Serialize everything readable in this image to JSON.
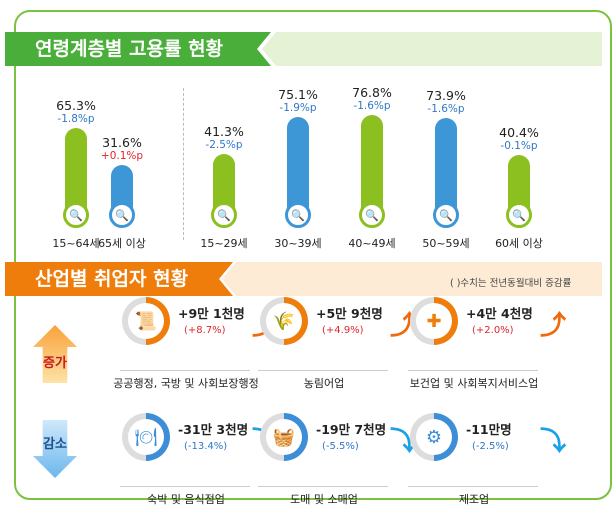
{
  "colors": {
    "green": "#4aae3a",
    "bar_green": "#8cc020",
    "bar_blue": "#3d96d6",
    "orange": "#ef7d0b",
    "neg": "#2f78c4",
    "pos": "#e0262b"
  },
  "section1": {
    "title": "연령계층별 고용률 현황"
  },
  "chart_data": {
    "type": "bar",
    "title": "연령계층별 고용률 현황",
    "categories": [
      "15~64세",
      "65세 이상",
      "15~29세",
      "30~39세",
      "40~49세",
      "50~59세",
      "60세 이상"
    ],
    "values": [
      65.3,
      31.6,
      41.3,
      75.1,
      76.8,
      73.9,
      40.4
    ],
    "value_labels": [
      "65.3%",
      "31.6%",
      "41.3%",
      "75.1%",
      "76.8%",
      "73.9%",
      "40.4%"
    ],
    "changes": [
      "-1.8%p",
      "+0.1%p",
      "-2.5%p",
      "-1.9%p",
      "-1.6%p",
      "-1.6%p",
      "-0.1%p"
    ],
    "bar_colors": [
      "green",
      "blue",
      "green",
      "blue",
      "green",
      "blue",
      "green"
    ]
  },
  "section2": {
    "title": "산업별 취업자 현황",
    "note": "( )수치는 전년동월대비 증감률",
    "increase_label": "증가",
    "decrease_label": "감소",
    "increase": [
      {
        "name": "공공행정, 국방 및 사회보장행정",
        "count": "+9만 1천명",
        "pct": "(+8.7%)",
        "icon": "scroll-icon",
        "glyph": "📜"
      },
      {
        "name": "농림어업",
        "count": "+5만 9천명",
        "pct": "(+4.9%)",
        "icon": "wheat-icon",
        "glyph": "🌾"
      },
      {
        "name": "보건업 및 사회복지서비스업",
        "count": "+4만 4천명",
        "pct": "(+2.0%)",
        "icon": "first-aid-kit-icon",
        "glyph": "✚"
      }
    ],
    "decrease": [
      {
        "name": "숙박 및 음식점업",
        "count": "-31만 3천명",
        "pct": "(-13.4%)",
        "icon": "plate-cutlery-icon",
        "glyph": "🍽"
      },
      {
        "name": "도매 및 소매업",
        "count": "-19만 7천명",
        "pct": "(-5.5%)",
        "icon": "basket-icon",
        "glyph": "🧺"
      },
      {
        "name": "제조업",
        "count": "-11만명",
        "pct": "(-2.5%)",
        "icon": "gears-icon",
        "glyph": "⚙"
      }
    ]
  }
}
